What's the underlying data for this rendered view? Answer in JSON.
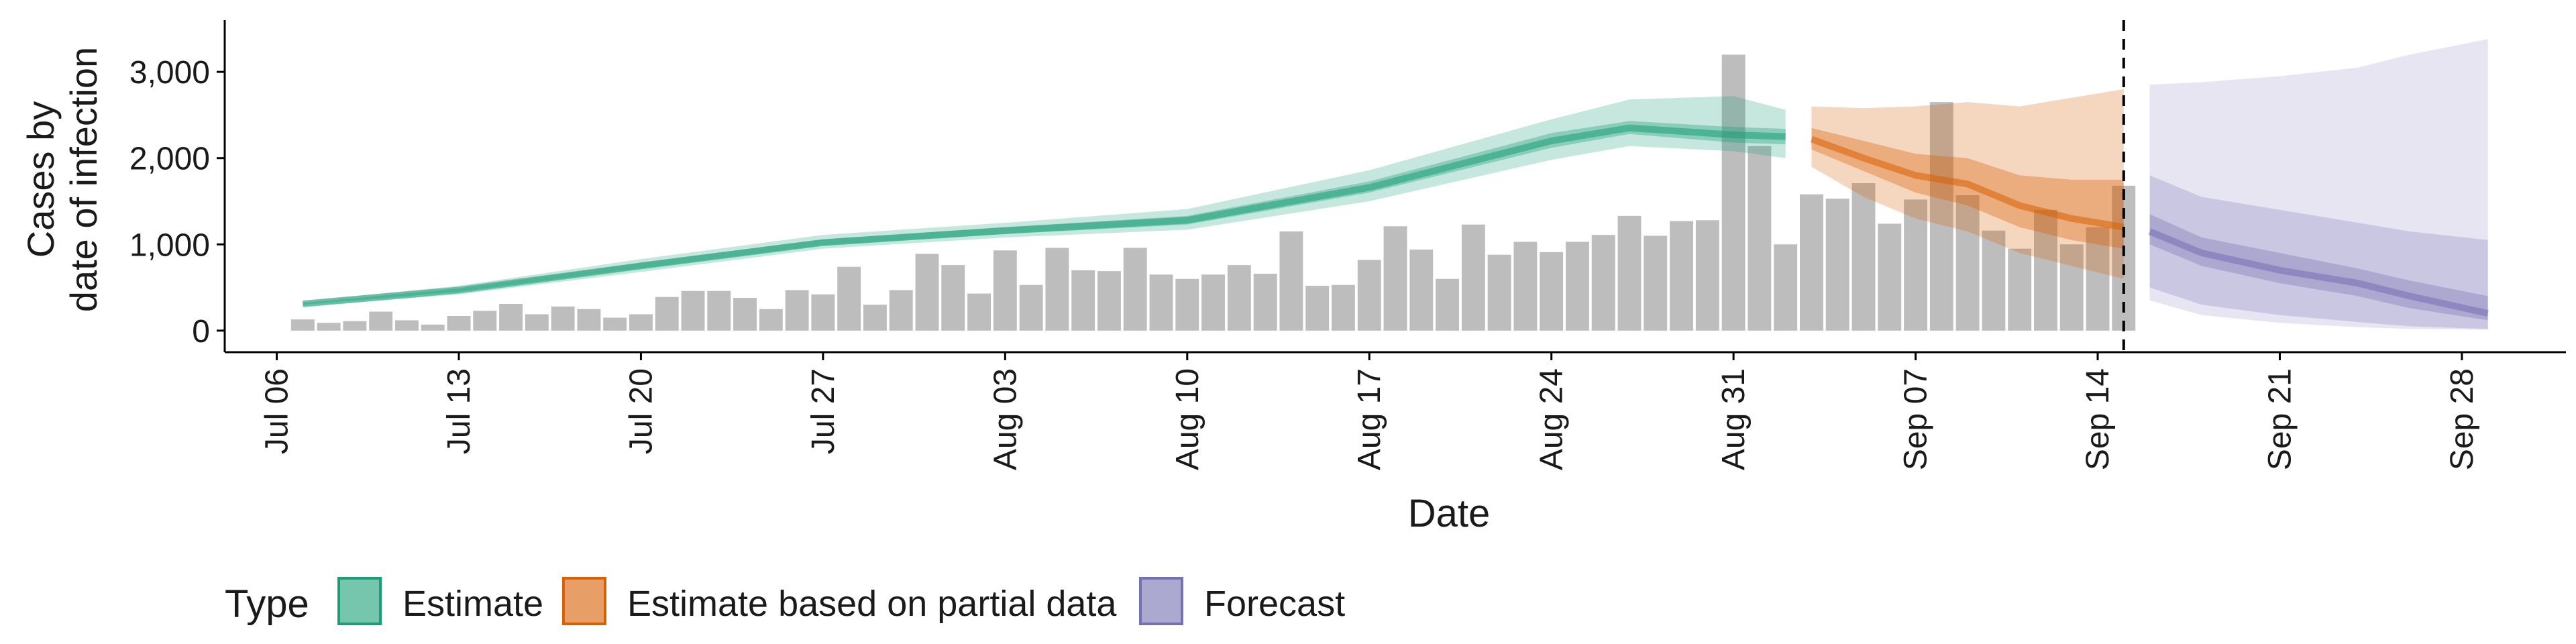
{
  "chart_data": {
    "type": "bar",
    "title": "",
    "xlabel": "Date",
    "ylabel_lines": [
      "Cases by",
      "date of infection"
    ],
    "ylim": [
      -250,
      3600
    ],
    "y_ticks": [
      0,
      1000,
      2000,
      3000
    ],
    "y_tick_labels": [
      "0",
      "1,000",
      "2,000",
      "3,000"
    ],
    "x_ticks": [
      "2020-07-06",
      "2020-07-13",
      "2020-07-20",
      "2020-07-27",
      "2020-08-03",
      "2020-08-10",
      "2020-08-17",
      "2020-08-24",
      "2020-08-31",
      "2020-09-07",
      "2020-09-14",
      "2020-09-21",
      "2020-09-28"
    ],
    "x_tick_labels": [
      "Jul 06",
      "Jul 13",
      "Jul 20",
      "Jul 27",
      "Aug 03",
      "Aug 10",
      "Aug 17",
      "Aug 24",
      "Aug 31",
      "Sep 07",
      "Sep 14",
      "Sep 21",
      "Sep 28"
    ],
    "xlim": [
      "2020-07-04",
      "2020-10-02"
    ],
    "forecast_cutoff_date": "2020-09-15",
    "reported_cases": {
      "start_date": "2020-07-07",
      "values": [
        130,
        90,
        110,
        220,
        120,
        70,
        170,
        230,
        310,
        190,
        280,
        250,
        150,
        190,
        390,
        460,
        460,
        380,
        250,
        470,
        420,
        740,
        300,
        470,
        890,
        760,
        430,
        930,
        530,
        960,
        700,
        690,
        960,
        650,
        600,
        650,
        760,
        660,
        1150,
        520,
        530,
        820,
        1210,
        940,
        600,
        1230,
        880,
        1030,
        910,
        1030,
        1110,
        1330,
        1100,
        1270,
        1280,
        3200,
        2140,
        1000,
        1580,
        1530,
        1710,
        1240,
        1520,
        2650,
        1570,
        1160,
        950,
        1400,
        1000,
        1200,
        1680
      ]
    },
    "estimate": {
      "dates": [
        "2020-07-07",
        "2020-07-13",
        "2020-07-20",
        "2020-07-27",
        "2020-08-03",
        "2020-08-10",
        "2020-08-17",
        "2020-08-24",
        "2020-08-27",
        "2020-08-31",
        "2020-09-02"
      ],
      "median": [
        310,
        470,
        750,
        1020,
        1160,
        1280,
        1660,
        2200,
        2350,
        2270,
        2250
      ],
      "inner_lower": [
        300,
        450,
        720,
        990,
        1120,
        1230,
        1600,
        2120,
        2280,
        2180,
        2160
      ],
      "inner_upper": [
        320,
        490,
        790,
        1060,
        1200,
        1330,
        1730,
        2290,
        2430,
        2360,
        2340
      ],
      "outer_lower": [
        280,
        420,
        680,
        950,
        1080,
        1170,
        1500,
        1980,
        2140,
        2080,
        2000
      ],
      "outer_upper": [
        340,
        520,
        830,
        1110,
        1250,
        1410,
        1860,
        2450,
        2680,
        2720,
        2560
      ]
    },
    "estimate_partial": {
      "dates": [
        "2020-09-03",
        "2020-09-05",
        "2020-09-07",
        "2020-09-09",
        "2020-09-11",
        "2020-09-13",
        "2020-09-15"
      ],
      "median": [
        2220,
        2000,
        1800,
        1700,
        1450,
        1300,
        1200
      ],
      "inner_lower": [
        2100,
        1850,
        1600,
        1450,
        1200,
        1050,
        950
      ],
      "inner_upper": [
        2350,
        2200,
        2050,
        2000,
        1800,
        1750,
        1750
      ],
      "outer_lower": [
        1900,
        1550,
        1300,
        1150,
        900,
        750,
        600
      ],
      "outer_upper": [
        2600,
        2580,
        2600,
        2650,
        2600,
        2700,
        2800
      ]
    },
    "forecast": {
      "dates": [
        "2020-09-16",
        "2020-09-18",
        "2020-09-21",
        "2020-09-24",
        "2020-09-26",
        "2020-09-29"
      ],
      "median": [
        1150,
        900,
        700,
        550,
        400,
        200
      ],
      "inner_lower": [
        1000,
        750,
        550,
        400,
        260,
        120
      ],
      "inner_upper": [
        1350,
        1080,
        900,
        720,
        580,
        400
      ],
      "outer_lower": [
        500,
        300,
        180,
        100,
        50,
        20
      ],
      "outer_upper": [
        1800,
        1550,
        1400,
        1250,
        1150,
        1050
      ],
      "envelope_lower": [
        350,
        180,
        90,
        40,
        20,
        10
      ],
      "envelope_upper": [
        2850,
        2880,
        2950,
        3050,
        3200,
        3380
      ]
    },
    "legend": {
      "position": "bottom",
      "title": "Type",
      "items": [
        {
          "key": "estimate",
          "label": "Estimate",
          "fill": "#1b9e77",
          "stroke": "#1b9e77"
        },
        {
          "key": "estimate_partial",
          "label": "Estimate based on partial data",
          "fill": "#d95f02",
          "stroke": "#d95f02"
        },
        {
          "key": "forecast",
          "label": "Forecast",
          "fill": "#7570b3",
          "stroke": "#7570b3"
        }
      ]
    },
    "colors": {
      "bar": "#bdbdbd",
      "axis": "#000000",
      "cutoff_line": "#000000"
    },
    "grid": false
  }
}
